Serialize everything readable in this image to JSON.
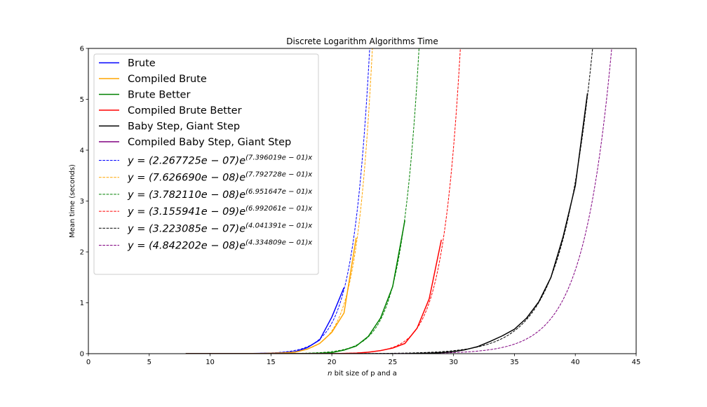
{
  "chart_data": {
    "type": "line",
    "title": "Discrete Logarithm Algorithms Time",
    "xlabel_italic": "n",
    "xlabel_rest": " bit size of p and a",
    "ylabel": "Mean time (seconds)",
    "xlim": [
      0,
      45
    ],
    "ylim": [
      0,
      6
    ],
    "xticks": [
      0,
      5,
      10,
      15,
      20,
      25,
      30,
      35,
      40,
      45
    ],
    "yticks": [
      0,
      1,
      2,
      3,
      4,
      5,
      6
    ],
    "grid": false,
    "legend_position": "upper-left",
    "series": [
      {
        "name": "Brute",
        "color": "#0000ff",
        "x": [
          8,
          9,
          10,
          11,
          12,
          13,
          14,
          15,
          16,
          17,
          18,
          19,
          20,
          21
        ],
        "y": [
          0,
          0,
          0,
          0,
          0,
          0.002,
          0.005,
          0.01,
          0.02,
          0.04,
          0.12,
          0.27,
          0.72,
          1.3
        ]
      },
      {
        "name": "Compiled Brute",
        "color": "#ffa500",
        "x": [
          8,
          9,
          10,
          11,
          12,
          13,
          14,
          15,
          16,
          17,
          18,
          19,
          20,
          21,
          22
        ],
        "y": [
          0,
          0,
          0,
          0,
          0,
          0.002,
          0.004,
          0.008,
          0.015,
          0.03,
          0.09,
          0.2,
          0.42,
          0.8,
          2.28
        ]
      },
      {
        "name": "Brute Better",
        "color": "#008000",
        "x": [
          8,
          9,
          10,
          11,
          12,
          13,
          14,
          15,
          16,
          17,
          18,
          19,
          20,
          21,
          22,
          23,
          24,
          25,
          26
        ],
        "y": [
          0,
          0,
          0,
          0,
          0,
          0,
          0,
          0,
          0,
          0.002,
          0.004,
          0.008,
          0.02,
          0.07,
          0.15,
          0.34,
          0.7,
          1.32,
          2.62
        ]
      },
      {
        "name": "Compiled Brute Better",
        "color": "#ff0000",
        "x": [
          8,
          9,
          10,
          11,
          12,
          13,
          14,
          15,
          16,
          17,
          18,
          19,
          20,
          21,
          22,
          23,
          24,
          25,
          26,
          27,
          28,
          29
        ],
        "y": [
          0,
          0,
          0,
          0,
          0,
          0,
          0,
          0,
          0,
          0,
          0,
          0,
          0,
          0.005,
          0.01,
          0.03,
          0.06,
          0.11,
          0.2,
          0.5,
          1.08,
          2.24
        ]
      },
      {
        "name": "Baby Step, Giant Step",
        "color": "#000000",
        "x": [
          8,
          9,
          10,
          11,
          12,
          13,
          14,
          15,
          16,
          17,
          18,
          19,
          20,
          21,
          22,
          23,
          24,
          25,
          26,
          27,
          28,
          29,
          30,
          31,
          32,
          33,
          34,
          35,
          36,
          37,
          38,
          39,
          40,
          41
        ],
        "y": [
          0,
          0,
          0,
          0,
          0,
          0,
          0,
          0,
          0,
          0,
          0,
          0,
          0,
          0,
          0,
          0,
          0,
          0,
          0,
          0.005,
          0.01,
          0.02,
          0.04,
          0.08,
          0.14,
          0.24,
          0.35,
          0.48,
          0.7,
          1.02,
          1.5,
          2.3,
          3.3,
          5.12
        ]
      },
      {
        "name": "Compiled Baby Step, Giant Step",
        "color": "#800080",
        "x": [],
        "y": []
      }
    ],
    "fits": [
      {
        "label_pre": "y = (2.267725e − 07)",
        "label_exp": "(7.396019e − 01)x",
        "color": "#0000ff",
        "a": 2.267725e-07,
        "b": 0.7396019,
        "x_start": 8,
        "x_end": 23.5
      },
      {
        "label_pre": "y = (7.626690e − 08)",
        "label_exp": "(7.792728e − 01)x",
        "color": "#ffa500",
        "a": 7.62669e-08,
        "b": 0.7792728,
        "x_start": 8,
        "x_end": 23.5
      },
      {
        "label_pre": "y = (3.782110e − 08)",
        "label_exp": "(6.951647e − 01)x",
        "color": "#008000",
        "a": 3.78211e-08,
        "b": 0.6951647,
        "x_start": 8,
        "x_end": 27.5
      },
      {
        "label_pre": "y = (3.155941e − 09)",
        "label_exp": "(6.992061e − 01)x",
        "color": "#ff0000",
        "a": 3.155941e-09,
        "b": 0.6992061,
        "x_start": 8,
        "x_end": 31
      },
      {
        "label_pre": "y = (3.223085e − 07)",
        "label_exp": "(4.041391e − 01)x",
        "color": "#000000",
        "a": 3.223085e-07,
        "b": 0.4041391,
        "x_start": 8,
        "x_end": 42
      },
      {
        "label_pre": "y = (4.842202e − 08)",
        "label_exp": "(4.334809e − 01)x",
        "color": "#800080",
        "a": 4.842202e-08,
        "b": 0.4334809,
        "x_start": 8,
        "x_end": 43.5
      }
    ]
  }
}
